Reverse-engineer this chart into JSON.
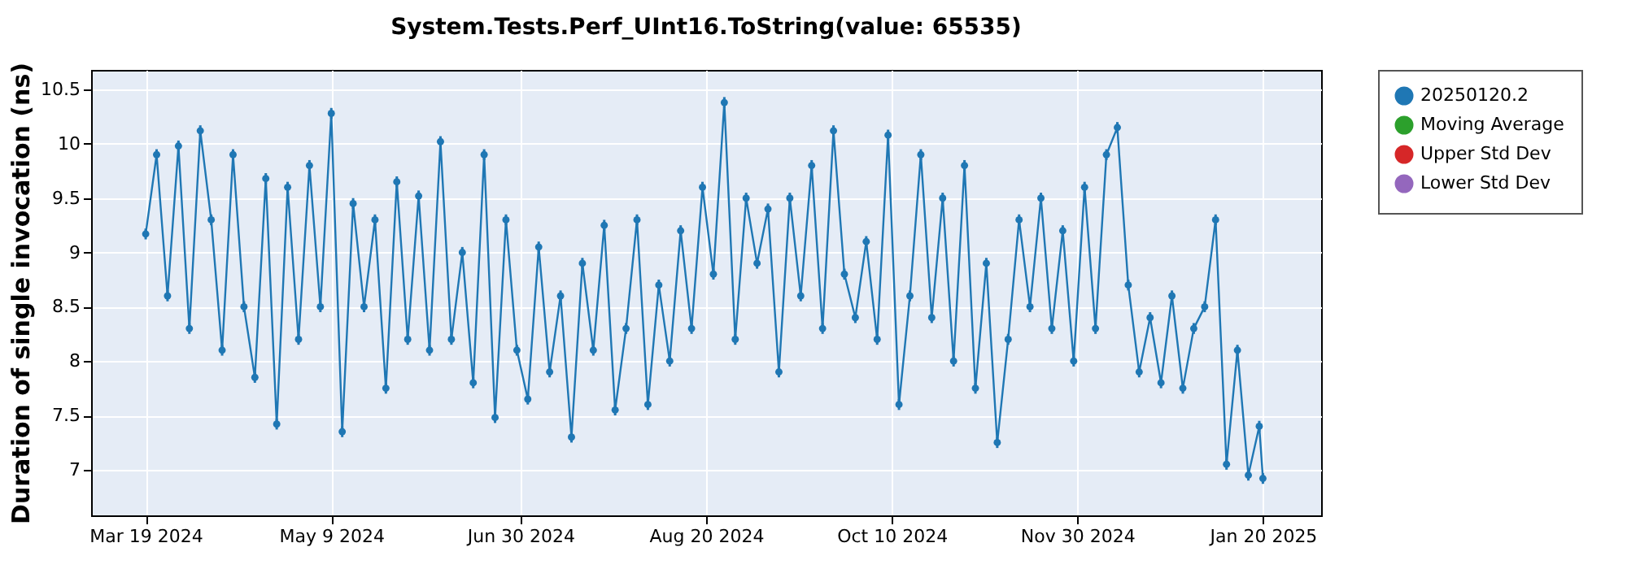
{
  "chart_data": {
    "type": "line",
    "title": "System.Tests.Perf_UInt16.ToString(value: 65535)",
    "ylabel": "Duration of single invocation (ns)",
    "x": [
      "2024-03-19",
      "2024-03-22",
      "2024-03-25",
      "2024-03-28",
      "2024-03-31",
      "2024-04-03",
      "2024-04-06",
      "2024-04-09",
      "2024-04-12",
      "2024-04-15",
      "2024-04-18",
      "2024-04-21",
      "2024-04-24",
      "2024-04-27",
      "2024-04-30",
      "2024-05-03",
      "2024-05-06",
      "2024-05-09",
      "2024-05-12",
      "2024-05-15",
      "2024-05-18",
      "2024-05-21",
      "2024-05-24",
      "2024-05-27",
      "2024-05-30",
      "2024-06-02",
      "2024-06-05",
      "2024-06-08",
      "2024-06-11",
      "2024-06-14",
      "2024-06-17",
      "2024-06-20",
      "2024-06-23",
      "2024-06-26",
      "2024-06-29",
      "2024-07-02",
      "2024-07-05",
      "2024-07-08",
      "2024-07-11",
      "2024-07-14",
      "2024-07-17",
      "2024-07-20",
      "2024-07-23",
      "2024-07-26",
      "2024-07-29",
      "2024-08-01",
      "2024-08-04",
      "2024-08-07",
      "2024-08-10",
      "2024-08-13",
      "2024-08-16",
      "2024-08-19",
      "2024-08-22",
      "2024-08-25",
      "2024-08-28",
      "2024-08-31",
      "2024-09-03",
      "2024-09-06",
      "2024-09-09",
      "2024-09-12",
      "2024-09-15",
      "2024-09-18",
      "2024-09-21",
      "2024-09-24",
      "2024-09-27",
      "2024-09-30",
      "2024-10-03",
      "2024-10-06",
      "2024-10-09",
      "2024-10-12",
      "2024-10-15",
      "2024-10-18",
      "2024-10-21",
      "2024-10-24",
      "2024-10-27",
      "2024-10-30",
      "2024-11-02",
      "2024-11-05",
      "2024-11-08",
      "2024-11-11",
      "2024-11-14",
      "2024-11-17",
      "2024-11-20",
      "2024-11-23",
      "2024-11-26",
      "2024-11-29",
      "2024-12-02",
      "2024-12-05",
      "2024-12-08",
      "2024-12-11",
      "2024-12-14",
      "2024-12-17",
      "2024-12-20",
      "2024-12-23",
      "2024-12-26",
      "2024-12-29",
      "2025-01-01",
      "2025-01-04",
      "2025-01-07",
      "2025-01-10",
      "2025-01-13",
      "2025-01-16",
      "2025-01-19",
      "2025-01-20"
    ],
    "series": [
      {
        "name": "20250120.2",
        "color": "#1f77b4",
        "values": [
          9.17,
          9.9,
          8.6,
          9.98,
          8.3,
          10.12,
          9.3,
          8.1,
          9.9,
          8.5,
          7.85,
          9.68,
          7.42,
          9.6,
          8.2,
          9.8,
          8.5,
          10.28,
          7.35,
          9.45,
          8.5,
          9.3,
          7.75,
          9.65,
          8.2,
          9.52,
          8.1,
          10.02,
          8.2,
          9.0,
          7.8,
          9.9,
          7.48,
          9.3,
          8.1,
          7.65,
          9.05,
          7.9,
          8.6,
          7.3,
          8.9,
          8.1,
          9.25,
          7.55,
          8.3,
          9.3,
          7.6,
          8.7,
          8.0,
          9.2,
          8.3,
          9.6,
          8.8,
          10.38,
          8.2,
          9.5,
          8.9,
          9.4,
          7.9,
          9.5,
          8.6,
          9.8,
          8.3,
          10.12,
          8.8,
          8.4,
          9.1,
          8.2,
          10.08,
          7.6,
          8.6,
          9.9,
          8.4,
          9.5,
          8.0,
          9.8,
          7.75,
          8.9,
          7.25,
          8.2,
          9.3,
          8.5,
          9.5,
          8.3,
          9.2,
          8.0,
          9.6,
          8.3,
          9.9,
          10.15,
          8.7,
          7.9,
          8.4,
          7.8,
          8.6,
          7.75,
          8.3,
          8.5,
          9.3,
          7.05,
          8.1,
          6.95,
          7.4,
          6.92
        ],
        "errors": [
          0.05,
          0.05,
          0.05,
          0.05,
          0.05,
          0.05,
          0.05,
          0.05,
          0.05,
          0.05,
          0.05,
          0.05,
          0.05,
          0.05,
          0.05,
          0.05,
          0.05,
          0.05,
          0.05,
          0.05,
          0.05,
          0.05,
          0.05,
          0.05,
          0.05,
          0.05,
          0.05,
          0.05,
          0.05,
          0.05,
          0.05,
          0.05,
          0.05,
          0.05,
          0.05,
          0.05,
          0.05,
          0.05,
          0.05,
          0.05,
          0.05,
          0.05,
          0.05,
          0.05,
          0.05,
          0.05,
          0.05,
          0.05,
          0.05,
          0.05,
          0.05,
          0.05,
          0.05,
          0.05,
          0.05,
          0.05,
          0.05,
          0.05,
          0.05,
          0.05,
          0.05,
          0.05,
          0.05,
          0.05,
          0.05,
          0.05,
          0.05,
          0.05,
          0.05,
          0.05,
          0.05,
          0.05,
          0.05,
          0.05,
          0.05,
          0.05,
          0.05,
          0.05,
          0.05,
          0.05,
          0.05,
          0.05,
          0.05,
          0.05,
          0.05,
          0.05,
          0.05,
          0.05,
          0.05,
          0.05,
          0.05,
          0.05,
          0.05,
          0.05,
          0.05,
          0.05,
          0.05,
          0.05,
          0.05,
          0.05,
          0.05,
          0.05,
          0.05,
          0.05
        ]
      },
      {
        "name": "Moving Average",
        "color": "#2ca02c",
        "values": [
          null,
          null,
          null,
          null,
          null,
          null,
          null,
          null,
          null,
          null,
          null,
          null,
          null,
          null,
          null,
          null,
          null,
          null,
          null,
          null,
          null,
          null,
          null,
          null,
          null,
          null,
          null,
          null,
          null,
          null,
          null,
          null,
          null,
          null,
          null,
          null,
          null,
          null,
          null,
          null,
          null,
          null,
          null,
          null,
          null,
          null,
          null,
          null,
          null,
          null,
          null,
          null,
          null,
          null,
          null,
          null,
          null,
          null,
          null,
          null,
          null,
          null,
          null,
          null,
          null,
          null,
          null,
          null,
          null,
          null,
          null,
          null,
          null,
          null,
          null,
          null,
          null,
          null,
          null,
          null,
          null,
          null,
          null,
          null,
          null,
          null,
          null,
          null,
          null,
          null,
          null,
          null,
          null,
          null,
          null,
          null,
          null,
          null,
          null,
          null,
          null,
          null,
          null,
          null
        ]
      },
      {
        "name": "Upper Std Dev",
        "color": "#d62728",
        "values": [
          null,
          null,
          null,
          null,
          null,
          null,
          null,
          null,
          null,
          null,
          null,
          null,
          null,
          null,
          null,
          null,
          null,
          null,
          null,
          null,
          null,
          null,
          null,
          null,
          null,
          null,
          null,
          null,
          null,
          null,
          null,
          null,
          null,
          null,
          null,
          null,
          null,
          null,
          null,
          null,
          null,
          null,
          null,
          null,
          null,
          null,
          null,
          null,
          null,
          null,
          null,
          null,
          null,
          null,
          null,
          null,
          null,
          null,
          null,
          null,
          null,
          null,
          null,
          null,
          null,
          null,
          null,
          null,
          null,
          null,
          null,
          null,
          null,
          null,
          null,
          null,
          null,
          null,
          null,
          null,
          null,
          null,
          null,
          null,
          null,
          null,
          null,
          null,
          null,
          null,
          null,
          null,
          null,
          null,
          null,
          null,
          null,
          null,
          null,
          null,
          null,
          null,
          null,
          null
        ]
      },
      {
        "name": "Lower Std Dev",
        "color": "#9467bd",
        "values": [
          null,
          null,
          null,
          null,
          null,
          null,
          null,
          null,
          null,
          null,
          null,
          null,
          null,
          null,
          null,
          null,
          null,
          null,
          null,
          null,
          null,
          null,
          null,
          null,
          null,
          null,
          null,
          null,
          null,
          null,
          null,
          null,
          null,
          null,
          null,
          null,
          null,
          null,
          null,
          null,
          null,
          null,
          null,
          null,
          null,
          null,
          null,
          null,
          null,
          null,
          null,
          null,
          null,
          null,
          null,
          null,
          null,
          null,
          null,
          null,
          null,
          null,
          null,
          null,
          null,
          null,
          null,
          null,
          null,
          null,
          null,
          null,
          null,
          null,
          null,
          null,
          null,
          null,
          null,
          null,
          null,
          null,
          null,
          null,
          null,
          null,
          null,
          null,
          null,
          null,
          null,
          null,
          null,
          null,
          null,
          null,
          null,
          null,
          null,
          null,
          null,
          null,
          null,
          null
        ]
      }
    ],
    "xlim": [
      "2024-03-04",
      "2025-02-05"
    ],
    "xticks": [
      {
        "value": "2024-03-19",
        "label": "Mar 19 2024"
      },
      {
        "value": "2024-05-09",
        "label": "May 9 2024"
      },
      {
        "value": "2024-06-30",
        "label": "Jun 30 2024"
      },
      {
        "value": "2024-08-20",
        "label": "Aug 20 2024"
      },
      {
        "value": "2024-10-10",
        "label": "Oct 10 2024"
      },
      {
        "value": "2024-11-30",
        "label": "Nov 30 2024"
      },
      {
        "value": "2025-01-20",
        "label": "Jan 20 2025"
      }
    ],
    "ylim": [
      6.58,
      10.68
    ],
    "yticks": [
      7,
      7.5,
      8,
      8.5,
      9,
      9.5,
      10,
      10.5
    ],
    "grid": true,
    "legend": "right",
    "marker": "circle",
    "line_style": "solid"
  }
}
